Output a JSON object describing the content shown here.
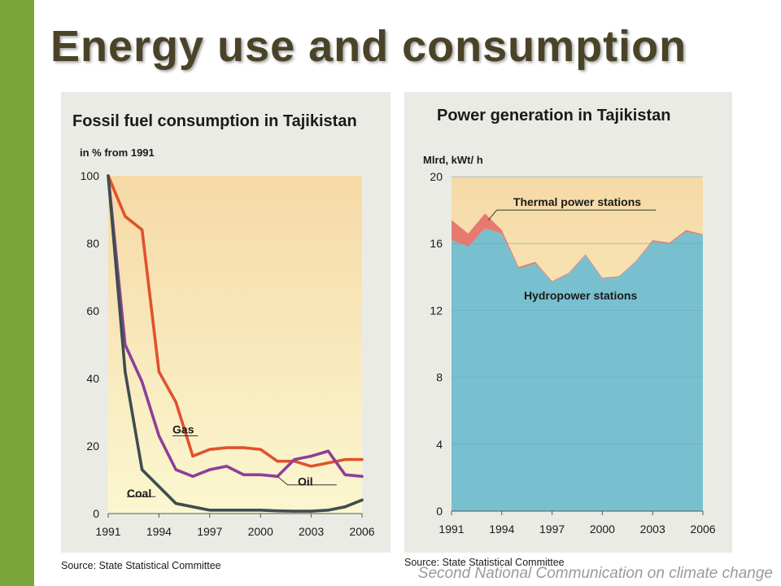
{
  "page_title": "Energy use and consumption",
  "footer": "Second National Communication on climate change",
  "colors": {
    "title": "#4a4328",
    "panel_bg": "#ebebe6",
    "plot_bg_top": "#f6d9a6",
    "plot_bg_bottom": "#fbf7d0",
    "gas": "#e0522c",
    "oil": "#8e3f98",
    "coal": "#3d4d4f",
    "hydro": "#78c0cf",
    "thermal": "#e67a70",
    "border": "#7aa53a"
  },
  "chart_data": [
    {
      "type": "line",
      "title": "Fossil fuel consumption in Tajikistan",
      "ylabel": "in % from 1991",
      "xlim": [
        1991,
        2006
      ],
      "ylim": [
        0,
        100
      ],
      "x_ticks": [
        1991,
        1994,
        1997,
        2000,
        2003,
        2006
      ],
      "y_ticks": [
        0,
        20,
        40,
        60,
        80,
        100
      ],
      "grid": false,
      "x": [
        1991,
        1992,
        1993,
        1994,
        1995,
        1996,
        1997,
        1998,
        1999,
        2000,
        2001,
        2002,
        2003,
        2004,
        2005,
        2006
      ],
      "series": [
        {
          "name": "Gas",
          "color": "#e0522c",
          "values": [
            100,
            88,
            84,
            42,
            33,
            17,
            19,
            19.5,
            19.5,
            19,
            15.5,
            15.5,
            14,
            15,
            16,
            16
          ]
        },
        {
          "name": "Oil",
          "color": "#8e3f98",
          "values": [
            100,
            50,
            39,
            23,
            13,
            11,
            13,
            14,
            11.5,
            11.5,
            11,
            16,
            17,
            18.5,
            11.5,
            11
          ]
        },
        {
          "name": "Coal",
          "color": "#3d4d4f",
          "values": [
            100,
            42,
            13,
            8,
            3,
            2,
            1,
            1,
            1,
            1,
            0.8,
            0.7,
            0.7,
            1,
            2,
            4
          ]
        }
      ],
      "source": "Source: State Statistical Committee"
    },
    {
      "type": "area",
      "title": "Power generation in Tajikistan",
      "ylabel": "Mlrd, kWt/ h",
      "xlim": [
        1991,
        2006
      ],
      "ylim": [
        0,
        20
      ],
      "x_ticks": [
        1991,
        1994,
        1997,
        2000,
        2003,
        2006
      ],
      "y_ticks": [
        0,
        4,
        8,
        12,
        16,
        20
      ],
      "grid": true,
      "x": [
        1991,
        1992,
        1993,
        1994,
        1995,
        1996,
        1997,
        1998,
        1999,
        2000,
        2001,
        2002,
        2003,
        2004,
        2005,
        2006
      ],
      "series": [
        {
          "name": "Hydropower stations",
          "color": "#78c0cf",
          "values": [
            16.2,
            15.8,
            16.9,
            16.6,
            14.5,
            14.8,
            13.7,
            14.2,
            15.3,
            13.9,
            14.0,
            14.9,
            16.1,
            16.0,
            16.7,
            16.5
          ]
        },
        {
          "name": "Thermal power stations",
          "color": "#e67a70",
          "values": [
            1.2,
            0.8,
            0.9,
            0.2,
            0.1,
            0.1,
            0.05,
            0.05,
            0.05,
            0.05,
            0.05,
            0.05,
            0.1,
            0.05,
            0.1,
            0.05
          ]
        }
      ],
      "source": "Source: State Statistical Committee"
    }
  ]
}
